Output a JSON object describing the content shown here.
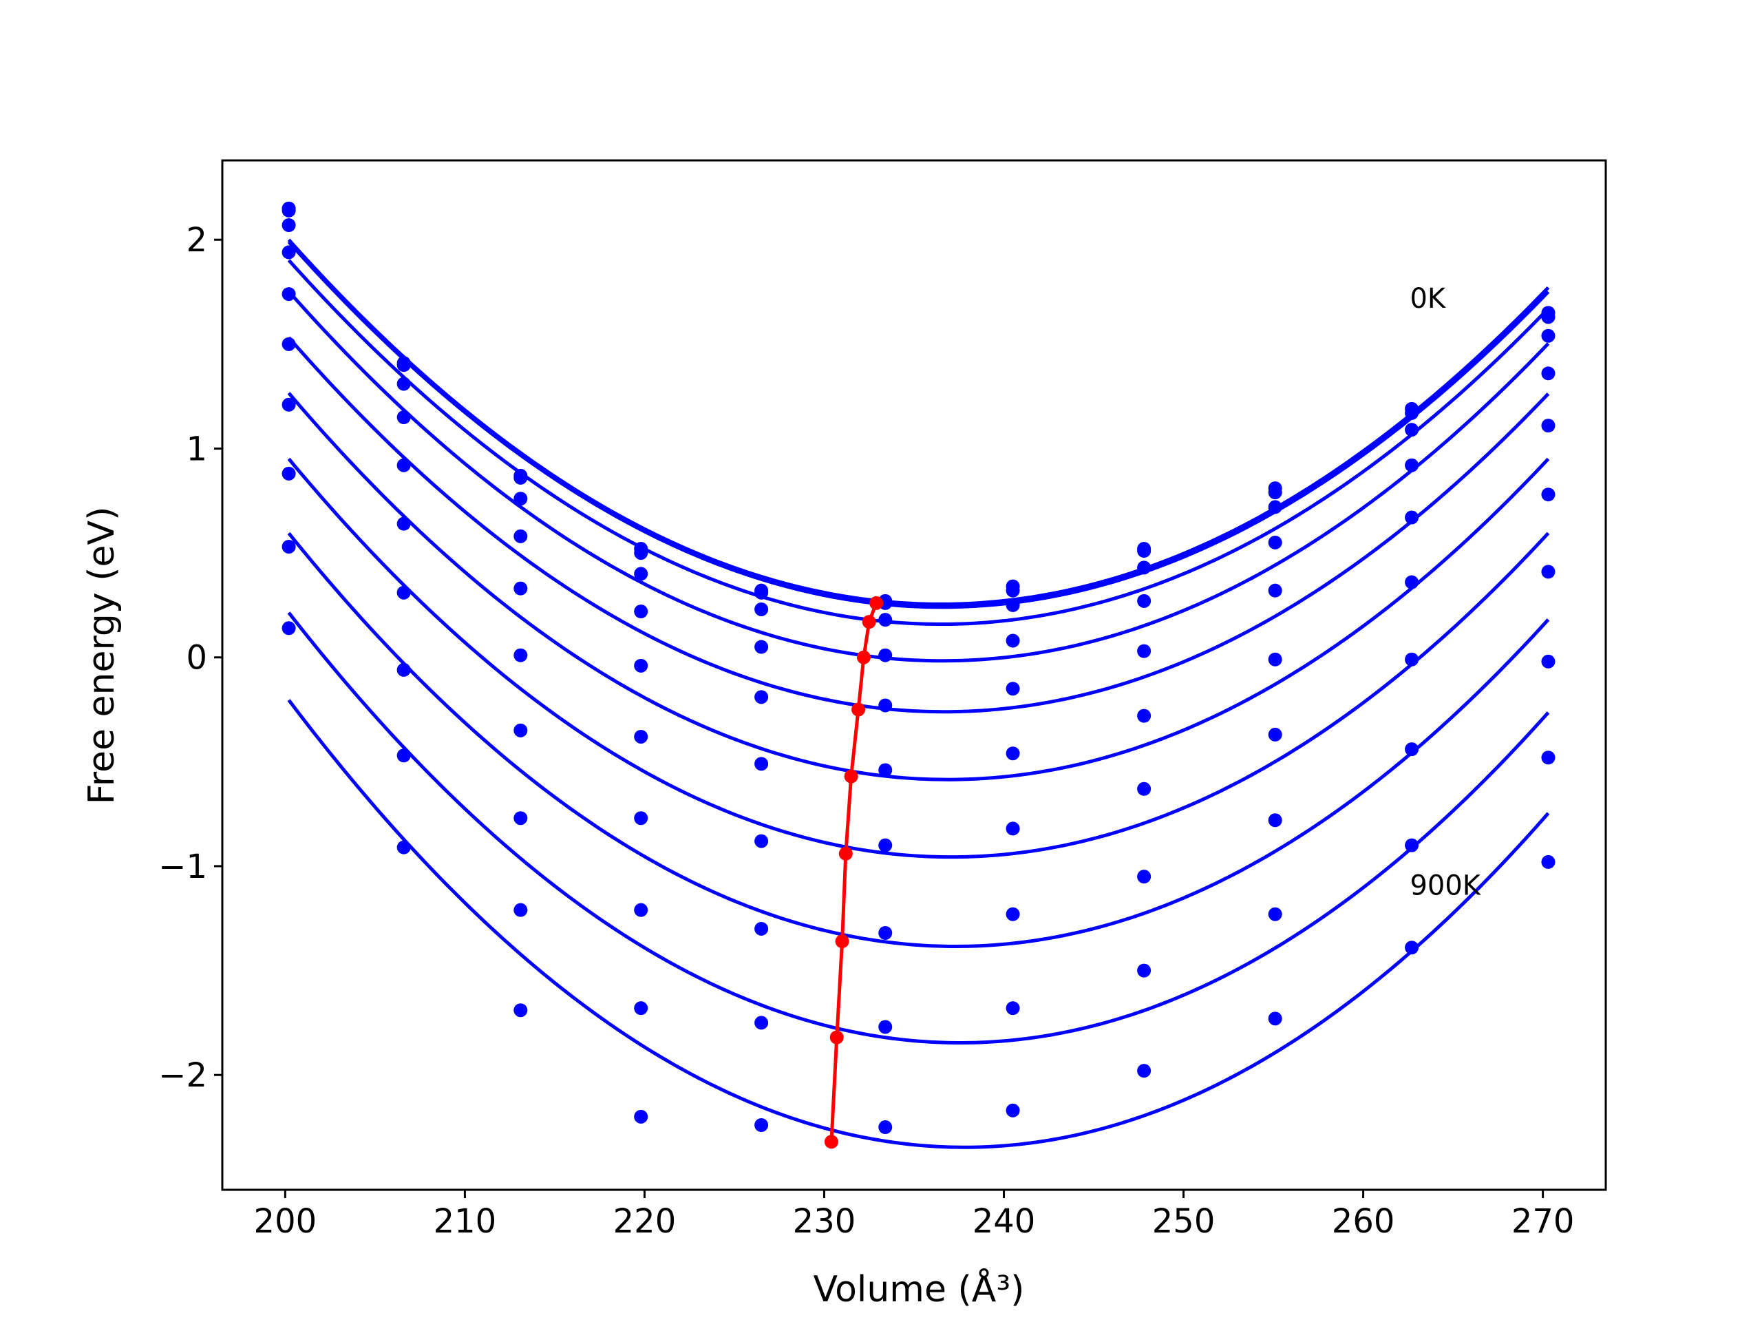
{
  "chart_data": {
    "type": "line",
    "title": "",
    "xlabel": "Volume (Å³)",
    "ylabel": "Free energy (eV)",
    "xlim": [
      196.5,
      273.5
    ],
    "ylim": [
      -2.55,
      2.38
    ],
    "xticks": [
      200,
      210,
      220,
      230,
      240,
      250,
      260,
      270
    ],
    "yticks": [
      -2,
      -1,
      0,
      1,
      2
    ],
    "ytick_labels": [
      "−2",
      "−1",
      "0",
      "1",
      "2"
    ],
    "grid": false,
    "legend": "none",
    "series_color": "#0000ff",
    "minimum_color": "#ff0000",
    "annotations": [
      {
        "text": "0K",
        "x": 262.6,
        "y": 1.72
      },
      {
        "text": "900K",
        "x": 262.6,
        "y": -1.09
      }
    ],
    "volumes": [
      200.2,
      206.6,
      213.1,
      219.8,
      226.5,
      233.4,
      240.5,
      247.8,
      255.1,
      262.7,
      270.3
    ],
    "series": [
      {
        "values": [
          2.15,
          1.41,
          0.87,
          0.52,
          0.32,
          0.27,
          0.34,
          0.52,
          0.81,
          1.19,
          1.65
        ]
      },
      {
        "values": [
          2.14,
          1.4,
          0.86,
          0.5,
          0.31,
          0.26,
          0.32,
          0.51,
          0.79,
          1.17,
          1.63
        ]
      },
      {
        "values": [
          2.07,
          1.31,
          0.76,
          0.4,
          0.23,
          0.18,
          0.25,
          0.43,
          0.72,
          1.09,
          1.54
        ]
      },
      {
        "values": [
          1.94,
          1.15,
          0.58,
          0.22,
          0.05,
          0.01,
          0.08,
          0.27,
          0.55,
          0.92,
          1.36
        ]
      },
      {
        "values": [
          1.74,
          0.92,
          0.33,
          -0.04,
          -0.19,
          -0.23,
          -0.15,
          0.03,
          0.32,
          0.67,
          1.11
        ]
      },
      {
        "values": [
          1.5,
          0.64,
          0.01,
          -0.38,
          -0.51,
          -0.54,
          -0.46,
          -0.28,
          -0.01,
          0.36,
          0.78
        ]
      },
      {
        "values": [
          1.21,
          0.31,
          -0.35,
          -0.77,
          -0.88,
          -0.9,
          -0.82,
          -0.63,
          -0.37,
          -0.01,
          0.41
        ]
      },
      {
        "values": [
          0.88,
          -0.06,
          -0.77,
          -1.21,
          -1.3,
          -1.32,
          -1.23,
          -1.05,
          -0.78,
          -0.44,
          -0.02
        ]
      },
      {
        "values": [
          0.53,
          -0.47,
          -1.21,
          -1.68,
          -1.75,
          -1.77,
          -1.68,
          -1.5,
          -1.23,
          -0.9,
          -0.48
        ]
      },
      {
        "values": [
          0.14,
          -0.91,
          -1.69,
          -2.2,
          -2.24,
          -2.25,
          -2.17,
          -1.98,
          -1.73,
          -1.39,
          -0.98
        ]
      }
    ],
    "minima": {
      "x": [
        232.9,
        232.5,
        232.2,
        231.9,
        231.5,
        231.2,
        231.0,
        230.7,
        230.4
      ],
      "y": [
        0.26,
        0.17,
        0.0,
        -0.25,
        -0.57,
        -0.94,
        -1.36,
        -1.82,
        -2.32
      ]
    }
  }
}
